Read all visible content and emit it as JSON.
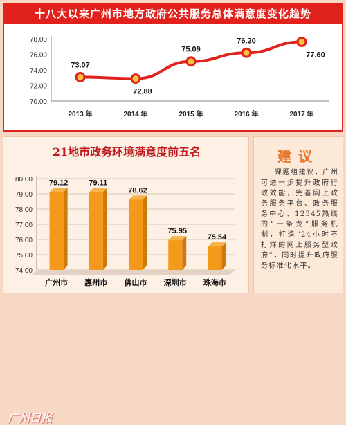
{
  "page": {
    "top_title": "十八大以来广州市地方政府公共服务总体满意度变化趋势",
    "bottom_title": "21地市政务环境满意度前五名",
    "note_title": "建议",
    "note_text": "课题组建议，广州可进一步提升政府行政效能，完善网上政务服务平台、政务服务中心、12345热线的“一条龙”服务机制，打造“24小时不打烊的网上服务型政府”，同时提升政府服务标准化水平。",
    "watermark": "广州日报"
  },
  "colors": {
    "banner": "#e1211c",
    "line": "#e1211c",
    "marker_fill": "#f7c341",
    "bar": "#f39a1a",
    "bar_dark": "#d07a0c"
  },
  "chart_data": [
    {
      "type": "line",
      "title": "十八大以来广州市地方政府公共服务总体满意度变化趋势",
      "categories": [
        "2013 年",
        "2014 年",
        "2015 年",
        "2016 年",
        "2017 年"
      ],
      "values": [
        73.07,
        72.88,
        75.09,
        76.2,
        77.6
      ],
      "value_labels": [
        "73.07",
        "72.88",
        "75.09",
        "76.20",
        "77.60"
      ],
      "yticks": [
        "78.00",
        "76.00",
        "74.00",
        "72.00",
        "70.00"
      ],
      "ylim": [
        70,
        78
      ],
      "grid": false
    },
    {
      "type": "bar",
      "title": "21地市政务环境满意度前五名",
      "categories": [
        "广州市",
        "惠州市",
        "佛山市",
        "深圳市",
        "珠海市"
      ],
      "values": [
        79.12,
        79.11,
        78.62,
        75.95,
        75.54
      ],
      "value_labels": [
        "79.12",
        "79.11",
        "78.62",
        "75.95",
        "75.54"
      ],
      "yticks": [
        "80.00",
        "79.00",
        "78.00",
        "77.00",
        "76.00",
        "75.00",
        "74.00"
      ],
      "ylim": [
        74,
        80
      ],
      "grid": true
    }
  ]
}
